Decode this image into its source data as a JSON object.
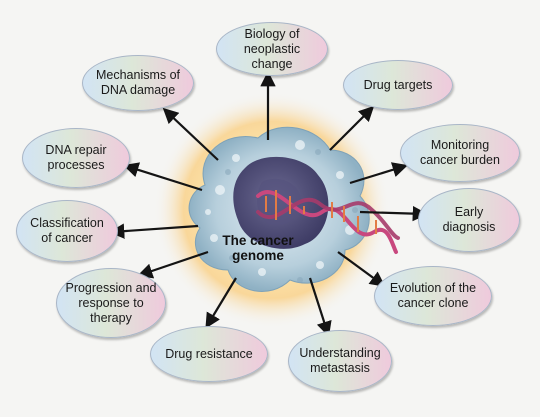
{
  "center": {
    "label_line1": "The cancer",
    "label_line2": "genome"
  },
  "nodes": {
    "biology": "Biology of neoplastic change",
    "mechanisms": "Mechanisms of DNA damage",
    "drug_targets": "Drug targets",
    "dna_repair": "DNA repair processes",
    "monitoring": "Monitoring cancer burden",
    "classification": "Classification of cancer",
    "early_diagnosis": "Early diagnosis",
    "progression": "Progression and response to therapy",
    "evolution": "Evolution of the cancer clone",
    "drug_resistance": "Drug resistance",
    "metastasis": "Understanding metastasis"
  }
}
